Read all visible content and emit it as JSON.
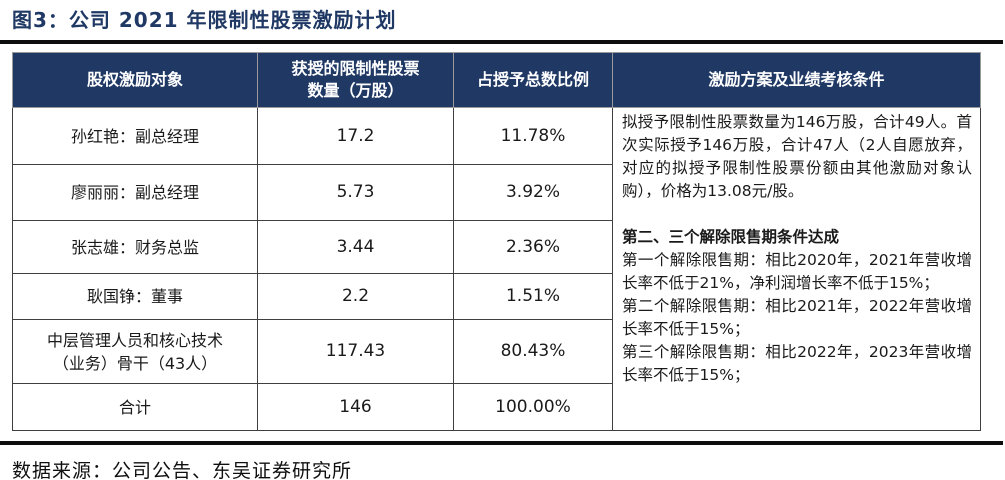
{
  "figure": {
    "title": "图3：公司 2021 年限制性股票激励计划",
    "source": "数据来源：公司公告、东吴证券研究所"
  },
  "colors": {
    "header_bg": "#1F3864",
    "title_text": "#1F3864",
    "rule": "#0D0D0D",
    "border": "#3F3F3F",
    "body_text": "#1A1A1A"
  },
  "table": {
    "headers": [
      {
        "label": "股权激励对象"
      },
      {
        "label": "获授的限制性股票",
        "label2": "数量（万股）"
      },
      {
        "label": "占授予总数比例"
      },
      {
        "label": "激励方案及业绩考核条件"
      }
    ],
    "rows": [
      {
        "name": "孙红艳：副总经理",
        "qty": "17.2",
        "pct": "11.78%"
      },
      {
        "name": "廖丽丽：副总经理",
        "qty": "5.73",
        "pct": "3.92%"
      },
      {
        "name": "张志雄：财务总监",
        "qty": "3.44",
        "pct": "2.36%"
      },
      {
        "name": "耿国铮：董事",
        "qty": "2.2",
        "pct": "1.51%"
      },
      {
        "name": "中层管理人员和核心技术",
        "name2": "（业务）骨干（43人）",
        "qty": "117.43",
        "pct": "80.43%"
      },
      {
        "name": "合计",
        "qty": "146",
        "pct": "100.00%"
      }
    ],
    "conditions": {
      "para1": "拟授予限制性股票数量为146万股，合计49人。首次实际授予146万股，合计47人（2人自愿放弃，对应的拟授予限制性股票份额由其他激励对象认购），价格为13.08元/股。",
      "heading": "第二、三个解除限售期条件达成",
      "period1": "第一个解除限售期：相比2020年，2021年营收增长率不低于21%，净利润增长率不低于15%；",
      "period2": "第二个解除限售期：相比2021年，2022年营收增长率不低于15%；",
      "period3": "第三个解除限售期：相比2022年，2023年营收增长率不低于15%；"
    }
  }
}
